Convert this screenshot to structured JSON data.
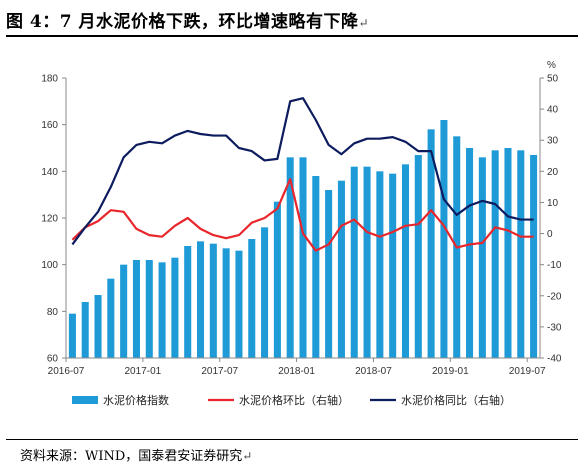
{
  "title": "图 4：7 月水泥价格下跌，环比增速略有下降",
  "footer": "资料来源：WIND，国泰君安证券研究",
  "chart_data": {
    "type": "bar+line",
    "left_axis": {
      "min": 60,
      "max": 180,
      "step": 20,
      "ticks": [
        "60",
        "80",
        "100",
        "120",
        "140",
        "160",
        "180"
      ]
    },
    "right_axis": {
      "min": -40,
      "max": 50,
      "step": 10,
      "unit": "%",
      "ticks": [
        "-40",
        "-30",
        "-20",
        "-10",
        "0",
        "10",
        "20",
        "30",
        "40",
        "50"
      ]
    },
    "x_tick_labels": [
      "2016-07",
      "2017-01",
      "2017-07",
      "2018-01",
      "2018-07",
      "2019-01",
      "2019-07"
    ],
    "x_tick_every": 6,
    "grid": false,
    "legend_position": "bottom",
    "series": [
      {
        "name": "水泥价格指数",
        "kind": "bar",
        "axis": "left",
        "color": "#1e9bd7",
        "values": [
          79,
          84,
          87,
          94,
          100,
          102,
          102,
          101,
          103,
          108,
          110,
          109,
          107,
          106,
          111,
          116,
          127,
          146,
          146,
          138,
          132,
          136,
          142,
          142,
          140,
          139,
          143,
          147,
          158,
          162,
          155,
          150,
          146,
          149,
          150,
          149,
          147
        ]
      },
      {
        "name": "水泥价格环比（右轴）",
        "kind": "line",
        "axis": "right",
        "color": "#e8262b",
        "values": [
          -2,
          2,
          4,
          7.5,
          7,
          1.5,
          -0.5,
          -1,
          2.5,
          5,
          1.5,
          -0.5,
          -1.5,
          -0.5,
          3.5,
          5,
          8,
          17.5,
          0,
          -5.5,
          -3.5,
          2.5,
          4.5,
          0.5,
          -1,
          0.5,
          2.5,
          3,
          7.5,
          2.5,
          -4.5,
          -3.5,
          -3,
          2,
          1,
          -1,
          -1
        ]
      },
      {
        "name": "水泥价格同比（右轴）",
        "kind": "line",
        "axis": "right",
        "color": "#0d1c5e",
        "values": [
          -3.5,
          2,
          7,
          15,
          24.5,
          28.5,
          29.5,
          29,
          31.5,
          33,
          32,
          31.5,
          31.5,
          27.5,
          26.5,
          23.5,
          24,
          42.5,
          43.5,
          36.5,
          28.5,
          25.5,
          29,
          30.5,
          30.5,
          31,
          29.5,
          26.5,
          26.5,
          11,
          6,
          9,
          10.5,
          9.5,
          5.5,
          4.5,
          4.5
        ]
      }
    ]
  }
}
